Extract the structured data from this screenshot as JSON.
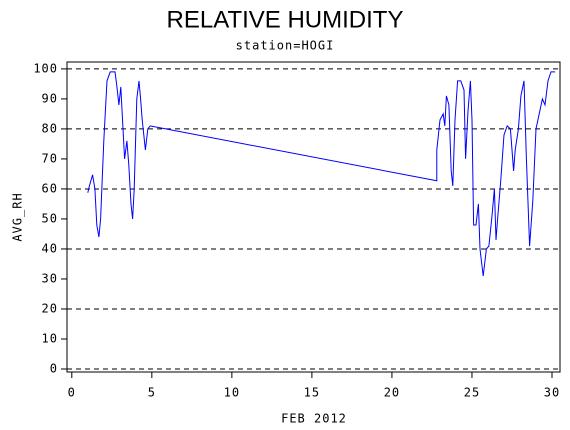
{
  "chart_data": {
    "type": "line",
    "title": "RELATIVE HUMIDITY",
    "subtitle": "station=HOGI",
    "x_label": "FEB 2012",
    "y_label": "AVG_RH",
    "xlim": [
      -0.3,
      30.5
    ],
    "ylim": [
      -1,
      102.3
    ],
    "xticks": [
      0,
      5,
      10,
      15,
      20,
      25,
      30
    ],
    "yticks": [
      0,
      10,
      20,
      30,
      40,
      50,
      60,
      70,
      80,
      90,
      100
    ],
    "grid_lines": [
      0,
      20,
      40,
      60,
      80,
      100
    ],
    "series": [
      {
        "name": "AVG_RH",
        "color": "#0000ff",
        "x": [
          1.0,
          1.1,
          1.3,
          1.44,
          1.56,
          1.69,
          1.8,
          2.0,
          2.2,
          2.4,
          2.7,
          2.8,
          2.94,
          3.06,
          3.2,
          3.3,
          3.44,
          3.56,
          3.7,
          3.8,
          3.9,
          4.06,
          4.2,
          4.3,
          4.4,
          4.6,
          4.75,
          4.9,
          22.8,
          22.8,
          23.0,
          23.2,
          23.3,
          23.4,
          23.56,
          23.7,
          23.8,
          23.94,
          24.1,
          24.3,
          24.5,
          24.6,
          24.75,
          24.9,
          25.0,
          25.1,
          25.25,
          25.4,
          25.5,
          25.7,
          25.9,
          26.06,
          26.25,
          26.4,
          26.5,
          26.6,
          26.8,
          27.0,
          27.2,
          27.4,
          27.6,
          27.7,
          27.9,
          28.06,
          28.25,
          28.4,
          28.6,
          28.8,
          29.0,
          29.2,
          29.4,
          29.56,
          29.75,
          29.94,
          30.2
        ],
        "values": [
          58.7,
          61,
          64.7,
          60,
          48,
          44,
          50,
          76,
          96,
          99,
          99,
          95,
          88,
          94,
          80,
          70,
          76,
          68,
          55,
          50,
          60,
          90,
          96,
          90,
          83,
          73,
          80,
          81,
          62.7,
          73,
          83,
          85,
          81,
          91,
          88,
          66,
          61,
          83,
          96,
          96,
          93,
          70,
          86,
          96,
          83,
          48,
          48,
          55,
          40,
          31,
          40,
          41,
          51,
          60,
          43,
          50,
          63,
          78,
          81,
          80,
          66,
          73,
          80,
          91,
          96,
          70,
          41,
          56,
          80,
          85,
          90,
          88,
          96,
          99,
          99
        ]
      }
    ]
  }
}
